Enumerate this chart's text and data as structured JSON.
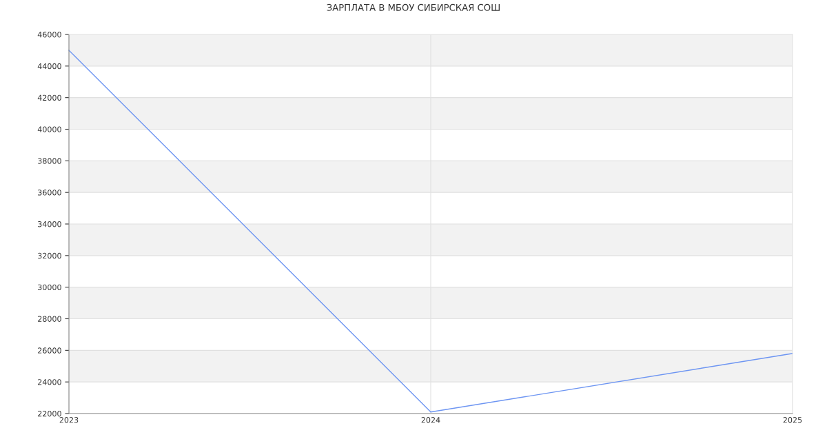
{
  "chart_data": {
    "type": "line",
    "title": "ЗАРПЛАТА В МБОУ СИБИРСКАЯ СОШ",
    "x": [
      2023,
      2024,
      2025
    ],
    "series": [
      {
        "color": "#6d95f2",
        "values": [
          45000,
          22100,
          25800
        ]
      }
    ],
    "xlim": [
      2023,
      2025
    ],
    "xticks": [
      2023,
      2024,
      2025
    ],
    "ylim": [
      22000,
      46000
    ],
    "yticks": [
      22000,
      24000,
      26000,
      28000,
      30000,
      32000,
      34000,
      36000,
      38000,
      40000,
      42000,
      44000,
      46000
    ],
    "grid": true,
    "marker": "none",
    "line_style": "solid"
  }
}
